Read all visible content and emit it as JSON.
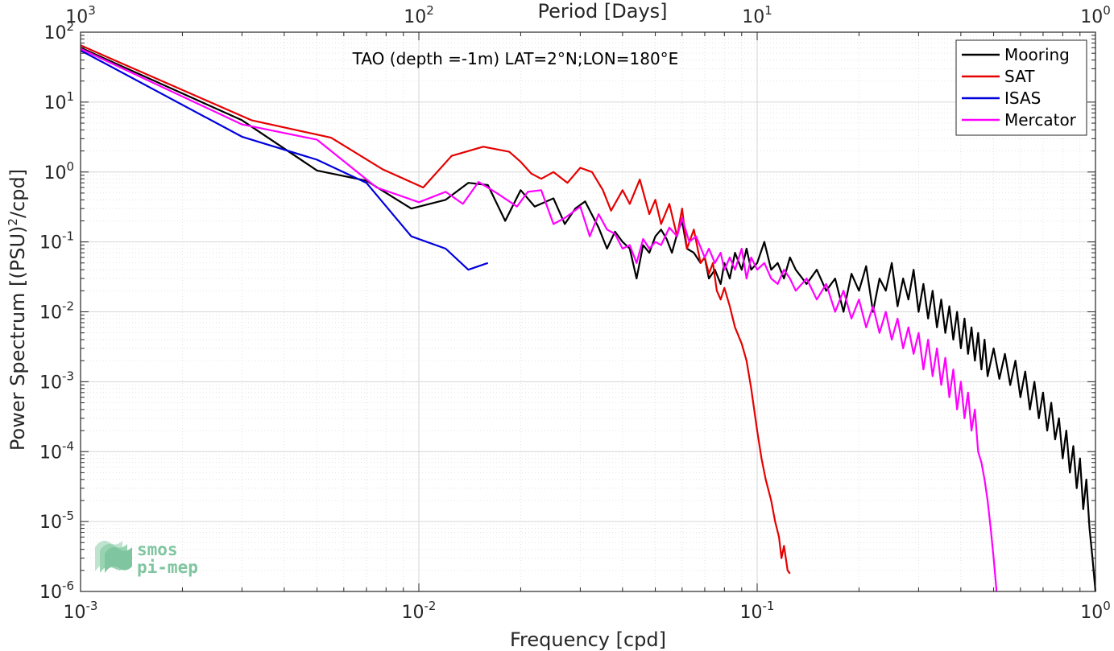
{
  "chart_data": {
    "type": "line",
    "title": "",
    "annotation": "TAO (depth =-1m) LAT=2°N;LON=180°E",
    "xlabel": "Frequency [cpd]",
    "ylabel_main": "Power Spectrum [(PSU)",
    "ylabel_sup": "2",
    "ylabel_tail": "/cpd]",
    "top_xlabel": "Period [Days]",
    "xscale": "log",
    "yscale": "log",
    "xlim": [
      0.001,
      1
    ],
    "ylim": [
      1e-06,
      100
    ],
    "grid": true,
    "legend_position": "top-right",
    "x_ticks": [
      {
        "value": 0.001,
        "base": "10",
        "exp": "-3"
      },
      {
        "value": 0.01,
        "base": "10",
        "exp": "-2"
      },
      {
        "value": 0.1,
        "base": "10",
        "exp": "-1"
      },
      {
        "value": 1,
        "base": "10",
        "exp": "0"
      }
    ],
    "y_ticks": [
      {
        "value": 1e-06,
        "base": "10",
        "exp": "-6"
      },
      {
        "value": 1e-05,
        "base": "10",
        "exp": "-5"
      },
      {
        "value": 0.0001,
        "base": "10",
        "exp": "-4"
      },
      {
        "value": 0.001,
        "base": "10",
        "exp": "-3"
      },
      {
        "value": 0.01,
        "base": "10",
        "exp": "-2"
      },
      {
        "value": 0.1,
        "base": "10",
        "exp": "-1"
      },
      {
        "value": 1,
        "base": "10",
        "exp": "0"
      },
      {
        "value": 10,
        "base": "10",
        "exp": "1"
      },
      {
        "value": 100,
        "base": "10",
        "exp": "2"
      }
    ],
    "top_ticks": [
      {
        "period": 1000,
        "base": "10",
        "exp": "3"
      },
      {
        "period": 100,
        "base": "10",
        "exp": "2"
      },
      {
        "period": 10,
        "base": "10",
        "exp": "1"
      },
      {
        "period": 1,
        "base": "10",
        "exp": "0"
      }
    ],
    "series": [
      {
        "name": "Mooring",
        "color": "#000000",
        "points": [
          [
            0.001,
            60
          ],
          [
            0.003,
            5.5
          ],
          [
            0.005,
            1.05
          ],
          [
            0.007,
            0.75
          ],
          [
            0.0095,
            0.3
          ],
          [
            0.012,
            0.4
          ],
          [
            0.014,
            0.7
          ],
          [
            0.016,
            0.65
          ],
          [
            0.018,
            0.2
          ],
          [
            0.02,
            0.55
          ],
          [
            0.022,
            0.32
          ],
          [
            0.025,
            0.42
          ],
          [
            0.027,
            0.18
          ],
          [
            0.029,
            0.3
          ],
          [
            0.031,
            0.38
          ],
          [
            0.034,
            0.16
          ],
          [
            0.036,
            0.08
          ],
          [
            0.038,
            0.14
          ],
          [
            0.04,
            0.1
          ],
          [
            0.042,
            0.08
          ],
          [
            0.044,
            0.03
          ],
          [
            0.046,
            0.09
          ],
          [
            0.048,
            0.07
          ],
          [
            0.05,
            0.12
          ],
          [
            0.052,
            0.15
          ],
          [
            0.054,
            0.11
          ],
          [
            0.056,
            0.07
          ],
          [
            0.058,
            0.13
          ],
          [
            0.06,
            0.2
          ],
          [
            0.062,
            0.08
          ],
          [
            0.065,
            0.07
          ],
          [
            0.068,
            0.05
          ],
          [
            0.07,
            0.06
          ],
          [
            0.072,
            0.03
          ],
          [
            0.075,
            0.04
          ],
          [
            0.078,
            0.025
          ],
          [
            0.08,
            0.05
          ],
          [
            0.083,
            0.03
          ],
          [
            0.086,
            0.07
          ],
          [
            0.09,
            0.04
          ],
          [
            0.093,
            0.08
          ],
          [
            0.096,
            0.04
          ],
          [
            0.1,
            0.05
          ],
          [
            0.105,
            0.1
          ],
          [
            0.11,
            0.04
          ],
          [
            0.115,
            0.05
          ],
          [
            0.12,
            0.03
          ],
          [
            0.125,
            0.06
          ],
          [
            0.13,
            0.04
          ],
          [
            0.14,
            0.025
          ],
          [
            0.15,
            0.04
          ],
          [
            0.16,
            0.02
          ],
          [
            0.17,
            0.03
          ],
          [
            0.18,
            0.01
          ],
          [
            0.19,
            0.035
          ],
          [
            0.2,
            0.02
          ],
          [
            0.21,
            0.045
          ],
          [
            0.22,
            0.01
          ],
          [
            0.23,
            0.03
          ],
          [
            0.24,
            0.02
          ],
          [
            0.25,
            0.05
          ],
          [
            0.26,
            0.012
          ],
          [
            0.27,
            0.03
          ],
          [
            0.28,
            0.015
          ],
          [
            0.29,
            0.04
          ],
          [
            0.3,
            0.01
          ],
          [
            0.31,
            0.025
          ],
          [
            0.32,
            0.008
          ],
          [
            0.33,
            0.02
          ],
          [
            0.34,
            0.006
          ],
          [
            0.35,
            0.015
          ],
          [
            0.36,
            0.005
          ],
          [
            0.37,
            0.012
          ],
          [
            0.38,
            0.004
          ],
          [
            0.39,
            0.01
          ],
          [
            0.4,
            0.003
          ],
          [
            0.41,
            0.008
          ],
          [
            0.42,
            0.0025
          ],
          [
            0.43,
            0.006
          ],
          [
            0.44,
            0.002
          ],
          [
            0.45,
            0.005
          ],
          [
            0.46,
            0.0015
          ],
          [
            0.47,
            0.004
          ],
          [
            0.48,
            0.0012
          ],
          [
            0.5,
            0.003
          ],
          [
            0.52,
            0.0011
          ],
          [
            0.54,
            0.0025
          ],
          [
            0.56,
            0.0009
          ],
          [
            0.58,
            0.002
          ],
          [
            0.6,
            0.0006
          ],
          [
            0.62,
            0.0014
          ],
          [
            0.64,
            0.0004
          ],
          [
            0.66,
            0.001
          ],
          [
            0.68,
            0.0003
          ],
          [
            0.7,
            0.0007
          ],
          [
            0.72,
            0.0002
          ],
          [
            0.74,
            0.0005
          ],
          [
            0.76,
            0.00015
          ],
          [
            0.78,
            0.0003
          ],
          [
            0.8,
            8e-05
          ],
          [
            0.82,
            0.0002
          ],
          [
            0.84,
            5e-05
          ],
          [
            0.86,
            0.00012
          ],
          [
            0.88,
            3e-05
          ],
          [
            0.9,
            8e-05
          ],
          [
            0.92,
            1.5e-05
          ],
          [
            0.94,
            4e-05
          ],
          [
            0.96,
            8e-06
          ],
          [
            0.98,
            3e-06
          ],
          [
            1.0,
            1e-06
          ]
        ]
      },
      {
        "name": "SAT",
        "color": "#e60000",
        "points": [
          [
            0.001,
            65
          ],
          [
            0.0032,
            5.5
          ],
          [
            0.0055,
            3.1
          ],
          [
            0.0078,
            1.1
          ],
          [
            0.0103,
            0.6
          ],
          [
            0.0125,
            1.7
          ],
          [
            0.0155,
            2.3
          ],
          [
            0.0185,
            1.95
          ],
          [
            0.02,
            1.4
          ],
          [
            0.0215,
            0.95
          ],
          [
            0.023,
            0.8
          ],
          [
            0.025,
            1.0
          ],
          [
            0.0275,
            0.7
          ],
          [
            0.03,
            1.15
          ],
          [
            0.0325,
            1.0
          ],
          [
            0.035,
            0.55
          ],
          [
            0.037,
            0.28
          ],
          [
            0.04,
            0.55
          ],
          [
            0.042,
            0.35
          ],
          [
            0.045,
            0.78
          ],
          [
            0.048,
            0.25
          ],
          [
            0.05,
            0.4
          ],
          [
            0.052,
            0.18
          ],
          [
            0.055,
            0.35
          ],
          [
            0.058,
            0.12
          ],
          [
            0.06,
            0.3
          ],
          [
            0.062,
            0.08
          ],
          [
            0.065,
            0.15
          ],
          [
            0.068,
            0.05
          ],
          [
            0.07,
            0.06
          ],
          [
            0.072,
            0.035
          ],
          [
            0.074,
            0.05
          ],
          [
            0.076,
            0.02
          ],
          [
            0.078,
            0.015
          ],
          [
            0.08,
            0.022
          ],
          [
            0.083,
            0.012
          ],
          [
            0.086,
            0.006
          ],
          [
            0.09,
            0.0035
          ],
          [
            0.093,
            0.002
          ],
          [
            0.096,
            0.0008
          ],
          [
            0.1,
            0.0002
          ],
          [
            0.103,
            8e-05
          ],
          [
            0.106,
            4e-05
          ],
          [
            0.11,
            2e-05
          ],
          [
            0.113,
            1e-05
          ],
          [
            0.116,
            6e-06
          ],
          [
            0.118,
            3e-06
          ],
          [
            0.12,
            4.5e-06
          ],
          [
            0.123,
            2e-06
          ],
          [
            0.125,
            1.8e-06
          ]
        ]
      },
      {
        "name": "ISAS",
        "color": "#0000dd",
        "points": [
          [
            0.001,
            55
          ],
          [
            0.003,
            3.2
          ],
          [
            0.005,
            1.5
          ],
          [
            0.007,
            0.7
          ],
          [
            0.0095,
            0.12
          ],
          [
            0.012,
            0.08
          ],
          [
            0.014,
            0.04
          ],
          [
            0.016,
            0.05
          ]
        ]
      },
      {
        "name": "Mercator",
        "color": "#ff00ff",
        "points": [
          [
            0.001,
            58
          ],
          [
            0.003,
            4.8
          ],
          [
            0.005,
            2.9
          ],
          [
            0.0075,
            0.6
          ],
          [
            0.01,
            0.37
          ],
          [
            0.012,
            0.52
          ],
          [
            0.0135,
            0.35
          ],
          [
            0.015,
            0.72
          ],
          [
            0.017,
            0.5
          ],
          [
            0.0195,
            0.32
          ],
          [
            0.021,
            0.52
          ],
          [
            0.023,
            0.55
          ],
          [
            0.025,
            0.18
          ],
          [
            0.027,
            0.22
          ],
          [
            0.03,
            0.32
          ],
          [
            0.032,
            0.12
          ],
          [
            0.034,
            0.25
          ],
          [
            0.036,
            0.15
          ],
          [
            0.038,
            0.13
          ],
          [
            0.04,
            0.08
          ],
          [
            0.042,
            0.09
          ],
          [
            0.044,
            0.05
          ],
          [
            0.046,
            0.11
          ],
          [
            0.048,
            0.08
          ],
          [
            0.05,
            0.1
          ],
          [
            0.052,
            0.09
          ],
          [
            0.055,
            0.16
          ],
          [
            0.058,
            0.12
          ],
          [
            0.06,
            0.22
          ],
          [
            0.063,
            0.1
          ],
          [
            0.066,
            0.12
          ],
          [
            0.07,
            0.06
          ],
          [
            0.072,
            0.08
          ],
          [
            0.075,
            0.05
          ],
          [
            0.078,
            0.07
          ],
          [
            0.08,
            0.04
          ],
          [
            0.083,
            0.06
          ],
          [
            0.086,
            0.04
          ],
          [
            0.09,
            0.08
          ],
          [
            0.093,
            0.03
          ],
          [
            0.096,
            0.06
          ],
          [
            0.1,
            0.04
          ],
          [
            0.105,
            0.05
          ],
          [
            0.11,
            0.03
          ],
          [
            0.115,
            0.025
          ],
          [
            0.12,
            0.04
          ],
          [
            0.125,
            0.03
          ],
          [
            0.13,
            0.02
          ],
          [
            0.14,
            0.03
          ],
          [
            0.15,
            0.015
          ],
          [
            0.16,
            0.025
          ],
          [
            0.17,
            0.01
          ],
          [
            0.18,
            0.02
          ],
          [
            0.19,
            0.008
          ],
          [
            0.2,
            0.015
          ],
          [
            0.21,
            0.006
          ],
          [
            0.22,
            0.012
          ],
          [
            0.23,
            0.005
          ],
          [
            0.24,
            0.01
          ],
          [
            0.25,
            0.004
          ],
          [
            0.26,
            0.008
          ],
          [
            0.27,
            0.003
          ],
          [
            0.28,
            0.006
          ],
          [
            0.29,
            0.0025
          ],
          [
            0.3,
            0.005
          ],
          [
            0.31,
            0.0015
          ],
          [
            0.32,
            0.004
          ],
          [
            0.33,
            0.0012
          ],
          [
            0.34,
            0.003
          ],
          [
            0.35,
            0.0009
          ],
          [
            0.36,
            0.0022
          ],
          [
            0.37,
            0.0006
          ],
          [
            0.38,
            0.0015
          ],
          [
            0.39,
            0.0004
          ],
          [
            0.4,
            0.001
          ],
          [
            0.41,
            0.0003
          ],
          [
            0.42,
            0.0007
          ],
          [
            0.43,
            0.0002
          ],
          [
            0.44,
            0.0004
          ],
          [
            0.45,
            0.0001
          ],
          [
            0.46,
            7e-05
          ],
          [
            0.47,
            4e-05
          ],
          [
            0.48,
            2e-05
          ],
          [
            0.49,
            8e-06
          ],
          [
            0.5,
            3e-06
          ],
          [
            0.51,
            1e-06
          ]
        ]
      }
    ]
  },
  "logo": {
    "line1": "smos",
    "line2": "pi-mep"
  }
}
